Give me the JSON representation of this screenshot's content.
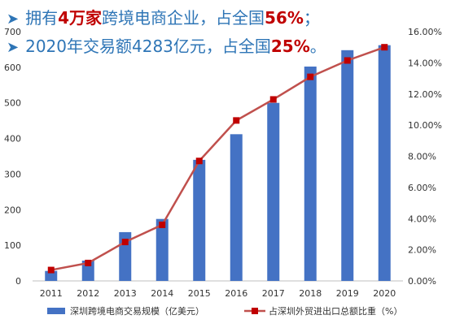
{
  "headline": {
    "arrow": "➤",
    "line1": {
      "pre": "拥有",
      "hl1": "4万家",
      "mid": "跨境电商企业，占全国",
      "hl2": "56%",
      "post": "；"
    },
    "line2": {
      "pre": "2020年交易额4283亿元，占全国",
      "hl": "25%",
      "post": "。"
    }
  },
  "chart_data": {
    "type": "bar+line",
    "categories": [
      "2011",
      "2012",
      "2013",
      "2014",
      "2015",
      "2016",
      "2017",
      "2018",
      "2019",
      "2020"
    ],
    "series": [
      {
        "name": "深圳跨境电商交易规模（亿美元）",
        "type": "bar",
        "axis": "left",
        "values": [
          28,
          57,
          137,
          174,
          340,
          412,
          500,
          602,
          648,
          662
        ]
      },
      {
        "name": "占深圳外贸进出口总额比重（%）",
        "type": "line",
        "axis": "right",
        "values": [
          0.007,
          0.0115,
          0.025,
          0.036,
          0.077,
          0.103,
          0.1165,
          0.131,
          0.1415,
          0.15
        ]
      }
    ],
    "ylim_left": [
      0,
      700
    ],
    "yticks_left": [
      "0",
      "100",
      "200",
      "300",
      "400",
      "500",
      "600",
      "700"
    ],
    "ylim_right": [
      0,
      0.16
    ],
    "yticks_right": [
      "0.00%",
      "2.00%",
      "4.00%",
      "6.00%",
      "8.00%",
      "10.00%",
      "12.00%",
      "14.00%",
      "16.00%"
    ],
    "colors": {
      "bar": "#4472c4",
      "line": "#c0504d",
      "marker": "#c00000"
    },
    "grid": false,
    "legend": "bottom"
  }
}
